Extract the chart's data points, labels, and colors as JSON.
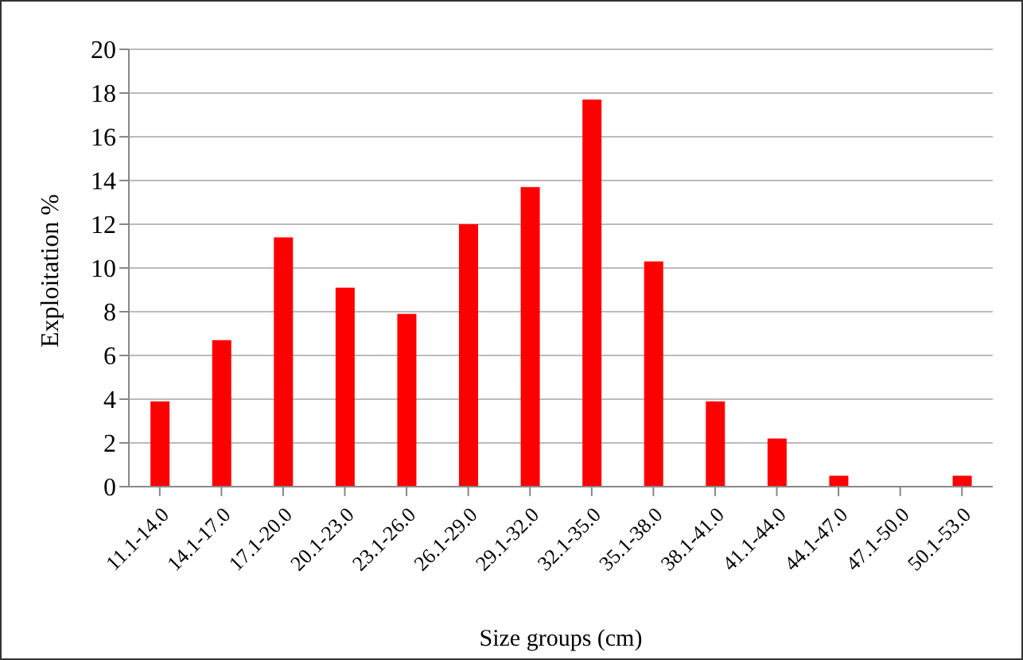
{
  "chart_data": {
    "type": "bar",
    "xlabel": "Size groups (cm)",
    "ylabel": "Exploitation  %",
    "categories": [
      "11.1-14.0",
      "14.1-17.0",
      "17.1-20.0",
      "20.1-23.0",
      "23.1-26.0",
      "26.1-29.0",
      "29.1-32.0",
      "32.1-35.0",
      "35.1-38.0",
      "38.1-41.0",
      "41.1-44.0",
      "44.1-47.0",
      "47.1-50.0",
      "50.1-53.0"
    ],
    "values": [
      3.9,
      6.7,
      11.4,
      9.1,
      7.9,
      12.0,
      13.7,
      17.7,
      10.3,
      3.9,
      2.2,
      0.5,
      0,
      0.5
    ],
    "color": "#ff0000",
    "ylim": [
      0,
      20
    ],
    "yticks": [
      0,
      2,
      4,
      6,
      8,
      10,
      12,
      14,
      16,
      18,
      20
    ],
    "grid": "y"
  }
}
